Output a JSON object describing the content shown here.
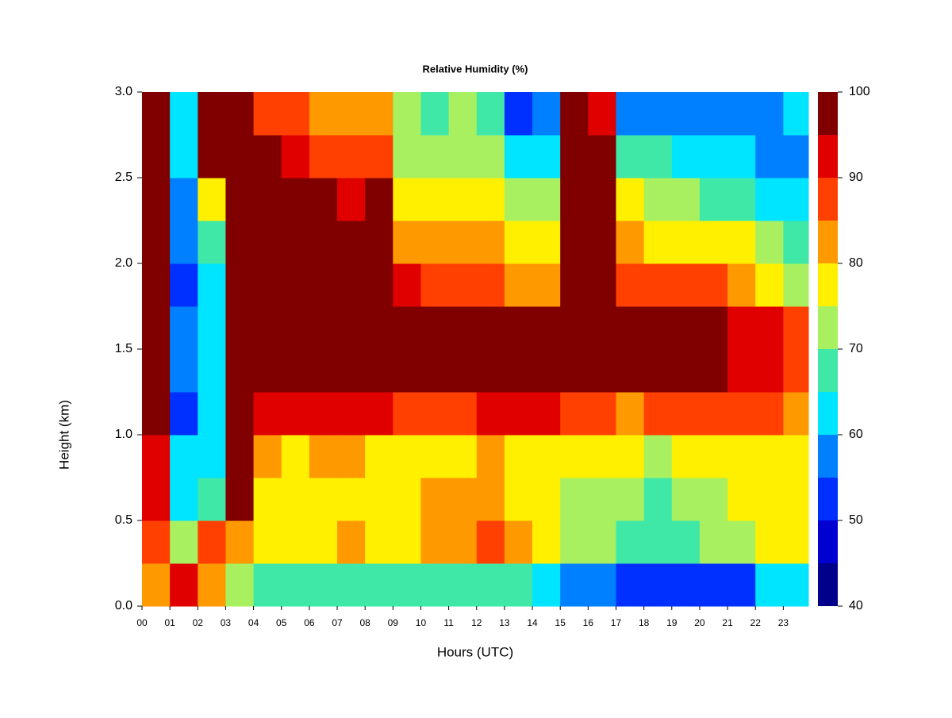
{
  "chart_data": {
    "type": "heatmap",
    "title": "Relative Humidity (%)",
    "xlabel": "Hours (UTC)",
    "ylabel": "Height (km)",
    "x": [
      0,
      1,
      2,
      3,
      4,
      5,
      6,
      7,
      8,
      9,
      10,
      11,
      12,
      13,
      14,
      15,
      16,
      17,
      18,
      19,
      20,
      21,
      22,
      23
    ],
    "y": [
      0,
      0.25,
      0.5,
      0.75,
      1,
      1.25,
      1.5,
      1.75,
      2,
      2.25,
      2.5,
      2.75
    ],
    "values": [
      [
        85,
        92,
        85,
        75,
        68,
        68,
        70,
        70,
        70,
        68,
        68,
        68,
        70,
        70,
        65,
        58,
        58,
        55,
        52,
        52,
        55,
        55,
        62,
        62
      ],
      [
        90,
        75,
        90,
        85,
        80,
        80,
        80,
        82,
        80,
        78,
        82,
        84,
        88,
        85,
        80,
        75,
        72,
        70,
        68,
        70,
        72,
        74,
        78,
        78
      ],
      [
        92,
        62,
        70,
        98,
        80,
        78,
        78,
        80,
        80,
        78,
        82,
        82,
        85,
        80,
        78,
        75,
        75,
        72,
        70,
        72,
        74,
        76,
        78,
        76
      ],
      [
        95,
        62,
        65,
        98,
        85,
        80,
        82,
        82,
        80,
        80,
        80,
        80,
        82,
        80,
        80,
        78,
        78,
        76,
        74,
        76,
        78,
        80,
        80,
        78
      ],
      [
        98,
        55,
        65,
        98,
        95,
        92,
        92,
        92,
        92,
        90,
        88,
        90,
        93,
        93,
        92,
        88,
        88,
        85,
        88,
        88,
        88,
        88,
        86,
        82
      ],
      [
        98,
        58,
        62,
        98,
        98,
        97,
        97,
        97,
        97,
        97,
        97,
        97,
        97,
        97,
        97,
        96,
        96,
        96,
        96,
        96,
        96,
        95,
        93,
        90
      ],
      [
        98,
        60,
        65,
        98,
        98,
        97,
        97,
        97,
        97,
        97,
        96,
        96,
        97,
        97,
        97,
        97,
        97,
        96,
        96,
        96,
        96,
        95,
        92,
        88
      ],
      [
        98,
        52,
        62,
        98,
        98,
        97,
        97,
        97,
        97,
        92,
        90,
        88,
        90,
        85,
        85,
        96,
        96,
        90,
        88,
        88,
        86,
        85,
        80,
        75
      ],
      [
        98,
        60,
        68,
        98,
        98,
        97,
        97,
        96,
        97,
        85,
        82,
        82,
        84,
        80,
        78,
        97,
        96,
        84,
        80,
        80,
        78,
        76,
        72,
        70
      ],
      [
        98,
        60,
        80,
        98,
        98,
        97,
        97,
        93,
        97,
        80,
        78,
        78,
        80,
        72,
        72,
        97,
        97,
        78,
        75,
        72,
        70,
        70,
        65,
        65
      ],
      [
        98,
        62,
        97,
        98,
        98,
        92,
        90,
        88,
        90,
        75,
        72,
        74,
        75,
        62,
        65,
        97,
        96,
        68,
        68,
        62,
        62,
        62,
        60,
        60
      ],
      [
        98,
        65,
        98,
        98,
        90,
        88,
        85,
        82,
        82,
        72,
        70,
        72,
        70,
        55,
        60,
        97,
        95,
        60,
        60,
        58,
        58,
        58,
        58,
        62
      ]
    ],
    "xlim": [
      0,
      23.9
    ],
    "ylim": [
      0,
      3
    ],
    "xticks": [
      {
        "value": 0,
        "label": "00"
      },
      {
        "value": 1,
        "label": "01"
      },
      {
        "value": 2,
        "label": "02"
      },
      {
        "value": 3,
        "label": "03"
      },
      {
        "value": 4,
        "label": "04"
      },
      {
        "value": 5,
        "label": "05"
      },
      {
        "value": 6,
        "label": "06"
      },
      {
        "value": 7,
        "label": "07"
      },
      {
        "value": 8,
        "label": "08"
      },
      {
        "value": 9,
        "label": "09"
      },
      {
        "value": 10,
        "label": "10"
      },
      {
        "value": 11,
        "label": "11"
      },
      {
        "value": 12,
        "label": "12"
      },
      {
        "value": 13,
        "label": "13"
      },
      {
        "value": 14,
        "label": "14"
      },
      {
        "value": 15,
        "label": "15"
      },
      {
        "value": 16,
        "label": "16"
      },
      {
        "value": 17,
        "label": "17"
      },
      {
        "value": 18,
        "label": "18"
      },
      {
        "value": 19,
        "label": "19"
      },
      {
        "value": 20,
        "label": "20"
      },
      {
        "value": 21,
        "label": "21"
      },
      {
        "value": 22,
        "label": "22"
      },
      {
        "value": 23,
        "label": "23"
      }
    ],
    "yticks": [
      {
        "value": 0,
        "label": "0.0"
      },
      0.5,
      {
        "value": 1,
        "label": "1.0"
      },
      1.5,
      {
        "value": 2,
        "label": "2.0"
      },
      2.5,
      {
        "value": 3,
        "label": "3.0"
      }
    ],
    "levels": [
      40,
      45,
      50,
      55,
      60,
      65,
      70,
      75,
      80,
      85,
      90,
      95,
      100
    ],
    "colors": [
      "#00008b",
      "#0000d0",
      "#0030ff",
      "#0080ff",
      "#00e5ff",
      "#40e8a8",
      "#a8f060",
      "#fff000",
      "#ff9900",
      "#ff4000",
      "#e00000",
      "#800000"
    ],
    "colorbar_ticks": [
      40,
      50,
      60,
      70,
      80,
      90,
      100
    ]
  }
}
